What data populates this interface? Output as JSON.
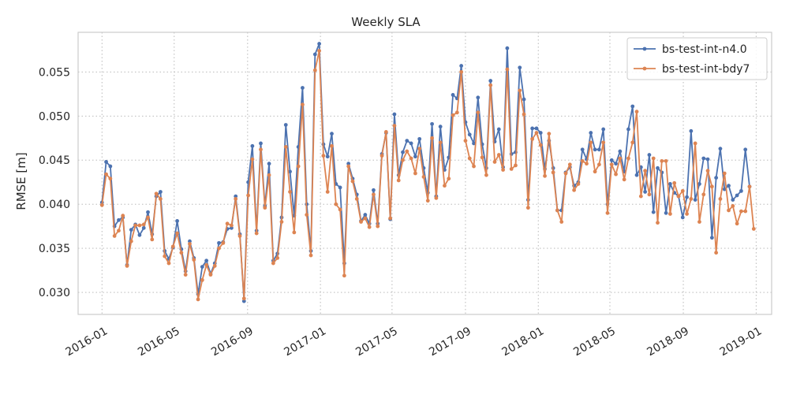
{
  "chart_data": {
    "type": "line",
    "title": "Weekly SLA",
    "xlabel": "",
    "ylabel": "RMSE [m]",
    "x_ticks": [
      "2016-01",
      "2016-05",
      "2016-09",
      "2017-01",
      "2017-05",
      "2017-09",
      "2018-01",
      "2018-05",
      "2018-09",
      "2019-01"
    ],
    "y_ticks": [
      "0.030",
      "0.035",
      "0.040",
      "0.045",
      "0.050",
      "0.055"
    ],
    "ylim": [
      0.0275,
      0.0595
    ],
    "xlim": [
      "2015-11-22",
      "2019-01-27"
    ],
    "grid": true,
    "legend_position": "top-right",
    "x_start": "2016-01-01",
    "x_step_days": 7,
    "series": [
      {
        "name": "bs-test-int-n4.0",
        "color": "#4c72b0",
        "values": [
          0.0402,
          0.0448,
          0.0443,
          0.0375,
          0.0382,
          0.0385,
          0.0331,
          0.0371,
          0.0377,
          0.0365,
          0.0373,
          0.0391,
          0.0366,
          0.0409,
          0.0414,
          0.0347,
          0.0338,
          0.0351,
          0.0381,
          0.0349,
          0.0324,
          0.0358,
          0.0339,
          0.0298,
          0.0329,
          0.0336,
          0.0321,
          0.0333,
          0.0356,
          0.0357,
          0.0372,
          0.0373,
          0.0409,
          0.0366,
          0.029,
          0.0425,
          0.0466,
          0.037,
          0.0469,
          0.0398,
          0.0446,
          0.0336,
          0.0344,
          0.0385,
          0.049,
          0.0437,
          0.0387,
          0.0465,
          0.0532,
          0.04,
          0.0347,
          0.057,
          0.0582,
          0.0468,
          0.0454,
          0.048,
          0.0423,
          0.0419,
          0.0333,
          0.0446,
          0.0429,
          0.0411,
          0.0381,
          0.0388,
          0.0378,
          0.0416,
          0.0378,
          0.0457,
          0.0481,
          0.0383,
          0.0502,
          0.0433,
          0.0459,
          0.0472,
          0.0469,
          0.0454,
          0.0474,
          0.0441,
          0.0413,
          0.0491,
          0.0409,
          0.0488,
          0.0439,
          0.0453,
          0.0524,
          0.052,
          0.0557,
          0.0493,
          0.0479,
          0.0469,
          0.0521,
          0.0468,
          0.0441,
          0.054,
          0.0471,
          0.0485,
          0.0442,
          0.0577,
          0.0457,
          0.0459,
          0.0555,
          0.0519,
          0.0405,
          0.0486,
          0.0486,
          0.0481,
          0.044,
          0.0472,
          0.0441,
          0.0393,
          0.0393,
          0.0436,
          0.0442,
          0.0421,
          0.0425,
          0.0462,
          0.0451,
          0.0481,
          0.0462,
          0.0462,
          0.0485,
          0.04,
          0.045,
          0.0446,
          0.046,
          0.0437,
          0.0485,
          0.0511,
          0.0433,
          0.0442,
          0.0414,
          0.0456,
          0.0391,
          0.0441,
          0.0436,
          0.039,
          0.0423,
          0.0413,
          0.0409,
          0.0385,
          0.0408,
          0.0483,
          0.0405,
          0.0423,
          0.0452,
          0.0451,
          0.0362,
          0.043,
          0.0463,
          0.0417,
          0.0421,
          0.0405,
          0.041,
          0.0415,
          0.0462,
          0.042
        ]
      },
      {
        "name": "bs-test-int-bdy7",
        "color": "#dd8452",
        "values": [
          0.0399,
          0.0434,
          0.0429,
          0.0364,
          0.037,
          0.0387,
          0.033,
          0.0358,
          0.0376,
          0.0376,
          0.0377,
          0.0385,
          0.036,
          0.0412,
          0.0406,
          0.0341,
          0.0333,
          0.0352,
          0.0367,
          0.0345,
          0.032,
          0.0355,
          0.0337,
          0.0292,
          0.0314,
          0.0331,
          0.032,
          0.033,
          0.035,
          0.0356,
          0.0378,
          0.0376,
          0.0406,
          0.0364,
          0.0293,
          0.041,
          0.0451,
          0.0367,
          0.0462,
          0.0396,
          0.0433,
          0.0333,
          0.0339,
          0.038,
          0.0465,
          0.0414,
          0.0368,
          0.0443,
          0.0513,
          0.0388,
          0.0342,
          0.0552,
          0.0574,
          0.0455,
          0.0414,
          0.0466,
          0.04,
          0.0394,
          0.0319,
          0.0443,
          0.0426,
          0.0406,
          0.038,
          0.0384,
          0.0374,
          0.0411,
          0.0375,
          0.0455,
          0.0482,
          0.0384,
          0.0489,
          0.0427,
          0.045,
          0.046,
          0.0452,
          0.0435,
          0.0463,
          0.0431,
          0.0404,
          0.0475,
          0.0407,
          0.047,
          0.0421,
          0.0429,
          0.0501,
          0.0504,
          0.055,
          0.0472,
          0.0452,
          0.0443,
          0.0504,
          0.0453,
          0.0433,
          0.0535,
          0.0448,
          0.0456,
          0.0439,
          0.0553,
          0.044,
          0.0444,
          0.0529,
          0.0502,
          0.0396,
          0.0474,
          0.0481,
          0.0467,
          0.0432,
          0.048,
          0.0436,
          0.0393,
          0.038,
          0.0435,
          0.0445,
          0.0416,
          0.0423,
          0.0449,
          0.0446,
          0.047,
          0.0437,
          0.0445,
          0.047,
          0.039,
          0.0445,
          0.0434,
          0.0452,
          0.0428,
          0.0452,
          0.047,
          0.0505,
          0.0409,
          0.0438,
          0.0411,
          0.0452,
          0.0379,
          0.0449,
          0.0449,
          0.0389,
          0.0424,
          0.0409,
          0.0415,
          0.0389,
          0.0406,
          0.0469,
          0.038,
          0.0411,
          0.0438,
          0.042,
          0.0345,
          0.0406,
          0.0435,
          0.0393,
          0.0398,
          0.0378,
          0.0392,
          0.0392,
          0.042,
          0.0372
        ]
      }
    ]
  }
}
